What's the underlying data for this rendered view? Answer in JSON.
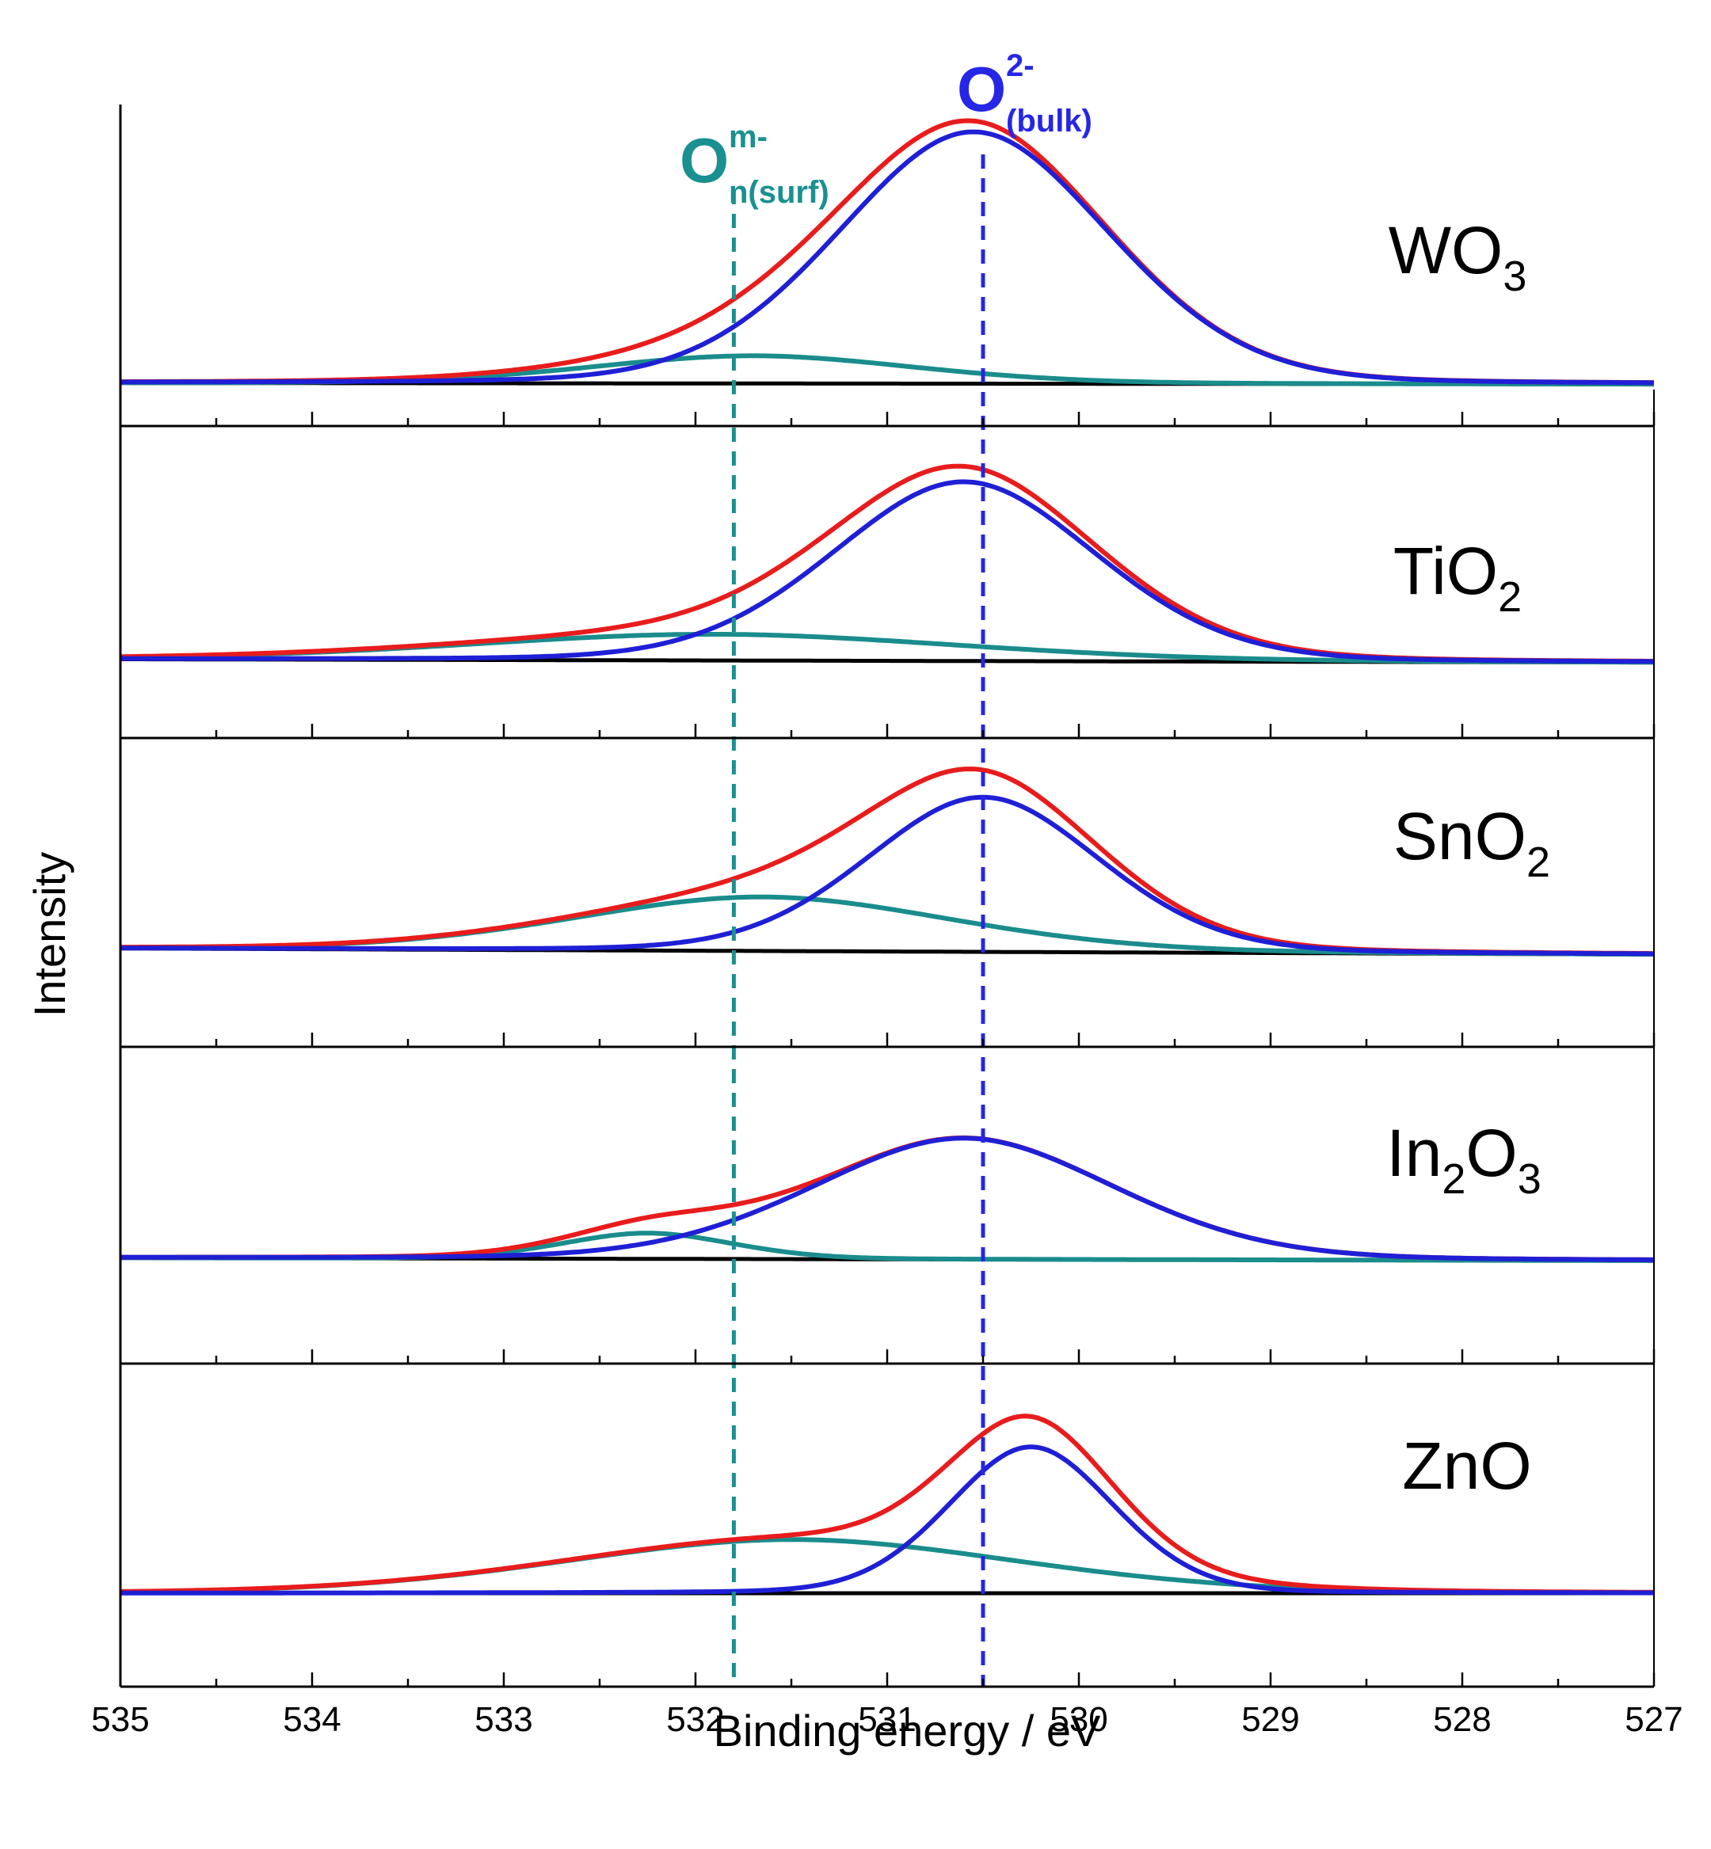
{
  "chart_data": {
    "type": "line",
    "title": "",
    "xlabel": "Binding energy / eV",
    "ylabel": "Intensity",
    "xlim": [
      535,
      527
    ],
    "x_reversed": true,
    "x_ticks": [
      535,
      534,
      533,
      532,
      531,
      530,
      529,
      528,
      527
    ],
    "x_minor_step": 0.5,
    "reference_lines": [
      {
        "name": "surface-oxygen",
        "x": 531.8,
        "label_main": "O",
        "label_sup": "m-",
        "label_sub": "n(surf)",
        "color": "#1a9090"
      },
      {
        "name": "bulk-oxygen",
        "x": 530.5,
        "label_main": "O",
        "label_sup": "2-",
        "label_sub": "(bulk)",
        "color": "#2626e6"
      }
    ],
    "series_styles": [
      {
        "name": "measured",
        "color": "#e81c1c"
      },
      {
        "name": "O2- bulk component",
        "color": "#1f1fd6"
      },
      {
        "name": "surface oxygen component",
        "color": "#1a8c8c"
      },
      {
        "name": "background",
        "color": "#000000"
      }
    ],
    "panels": [
      {
        "label_main": "WO",
        "label_sub": "3",
        "background": [
          0.02,
          0.015
        ],
        "bulk": {
          "center": 530.55,
          "sigma": 0.72,
          "height": 1.0
        },
        "surface": {
          "center": 531.7,
          "sigma": 0.85,
          "height": 0.11
        }
      },
      {
        "label_main": "TiO",
        "label_sub": "2",
        "background": [
          0.02,
          0.005
        ],
        "bulk": {
          "center": 530.6,
          "sigma": 0.7,
          "height": 0.82
        },
        "surface": {
          "center": 531.9,
          "sigma": 1.3,
          "height": 0.12
        }
      },
      {
        "label_main": "SnO",
        "label_sub": "2",
        "background": [
          0.03,
          0.005
        ],
        "bulk": {
          "center": 530.5,
          "sigma": 0.62,
          "height": 0.63
        },
        "surface": {
          "center": 531.65,
          "sigma": 1.0,
          "height": 0.22
        }
      },
      {
        "label_main": "In",
        "label_sub": "2",
        "label_main2": "O",
        "label_sub2": "3",
        "background": [
          0.015,
          0.0
        ],
        "bulk": {
          "center": 530.6,
          "sigma": 0.8,
          "height": 0.66
        },
        "surface": {
          "center": 532.25,
          "sigma": 0.45,
          "height": 0.14
        }
      },
      {
        "label_main": "ZnO",
        "label_sub": "",
        "background": [
          0.0,
          0.0
        ],
        "bulk": {
          "center": 530.25,
          "sigma": 0.44,
          "height": 0.6
        },
        "surface": {
          "center": 531.5,
          "sigma": 1.2,
          "height": 0.22
        }
      }
    ]
  }
}
